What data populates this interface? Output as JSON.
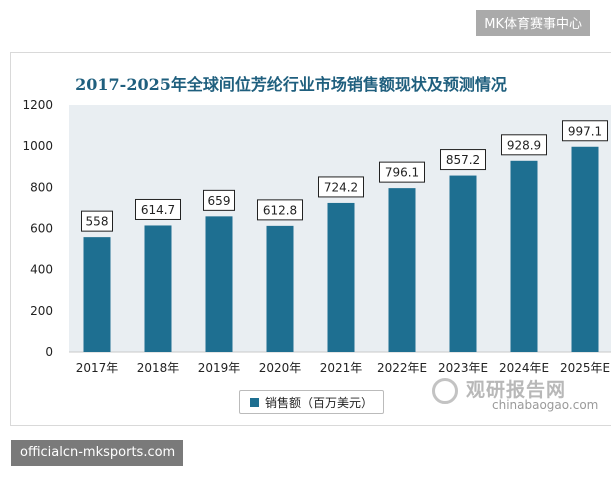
{
  "top_badge": "MK体育赛事中心",
  "bottom_badge": "officialcn-mksports.com",
  "watermark": {
    "cn": "观研报告网",
    "en": "chinabaogao.com"
  },
  "colors": {
    "bar": "#1e6f91",
    "title": "#1f5f7e",
    "plot_bg": "#e9eef2"
  },
  "chart_data": {
    "type": "bar",
    "title": "2017-2025年全球间位芳纶行业市场销售额现状及预测情况",
    "categories": [
      "2017年",
      "2018年",
      "2019年",
      "2020年",
      "2021年",
      "2022年E",
      "2023年E",
      "2024年E",
      "2025年E"
    ],
    "series": [
      {
        "name": "销售额（百万美元）",
        "values": [
          558,
          614.7,
          659,
          612.8,
          724.2,
          796.1,
          857.2,
          928.9,
          997.1
        ]
      }
    ],
    "data_labels": [
      "558",
      "614.7",
      "659",
      "612.8",
      "724.2",
      "796.1",
      "857.2",
      "928.9",
      "997.1"
    ],
    "yticks": [
      "0",
      "200",
      "400",
      "600",
      "800",
      "1000",
      "1200"
    ],
    "ylim": [
      0,
      1200
    ],
    "grid": false,
    "legend_position": "bottom"
  }
}
